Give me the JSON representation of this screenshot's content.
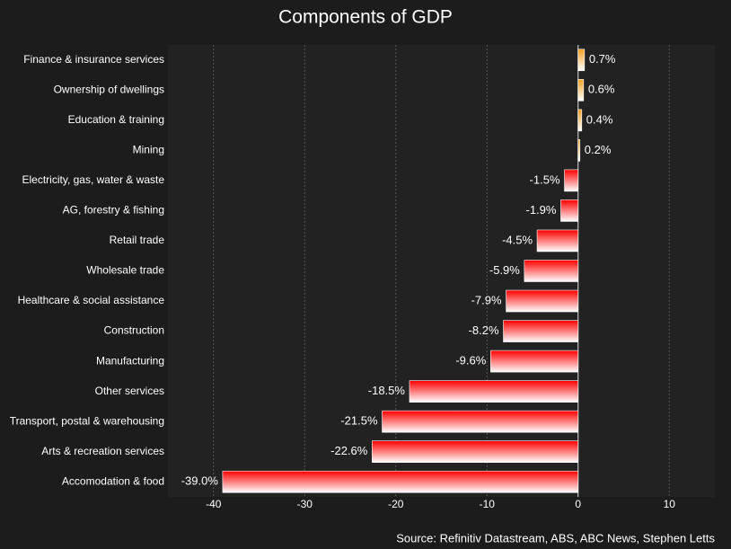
{
  "chart_data": {
    "type": "barh",
    "title": "Components of GDP",
    "categories": [
      "Finance & insurance services",
      "Ownership of dwellings",
      "Education & training",
      "Mining",
      "Electricity, gas, water & waste",
      "AG, forestry & fishing",
      "Retail trade",
      "Wholesale trade",
      "Healthcare & social assistance",
      "Construction",
      "Manufacturing",
      "Other services",
      "Transport, postal & warehousing",
      "Arts & recreation services",
      "Accomodation & food"
    ],
    "values": [
      0.7,
      0.6,
      0.4,
      0.2,
      -1.5,
      -1.9,
      -4.5,
      -5.9,
      -7.9,
      -8.2,
      -9.6,
      -18.5,
      -21.5,
      -22.6,
      -39.0
    ],
    "value_labels": [
      "0.7%",
      "0.6%",
      "0.4%",
      "0.2%",
      "-1.5%",
      "-1.9%",
      "-4.5%",
      "-5.9%",
      "-7.9%",
      "-8.2%",
      "-9.6%",
      "-18.5%",
      "-21.5%",
      "-22.6%",
      "-39.0%"
    ],
    "positive_color": "#f5a020",
    "negative_color": "#ff0000",
    "xlim": [
      -45,
      15
    ],
    "xticks": [
      -40,
      -30,
      -20,
      -10,
      0,
      10
    ],
    "grid": true,
    "source": "Source: Refinitiv Datastream, ABS, ABC News, Stephen Letts"
  }
}
